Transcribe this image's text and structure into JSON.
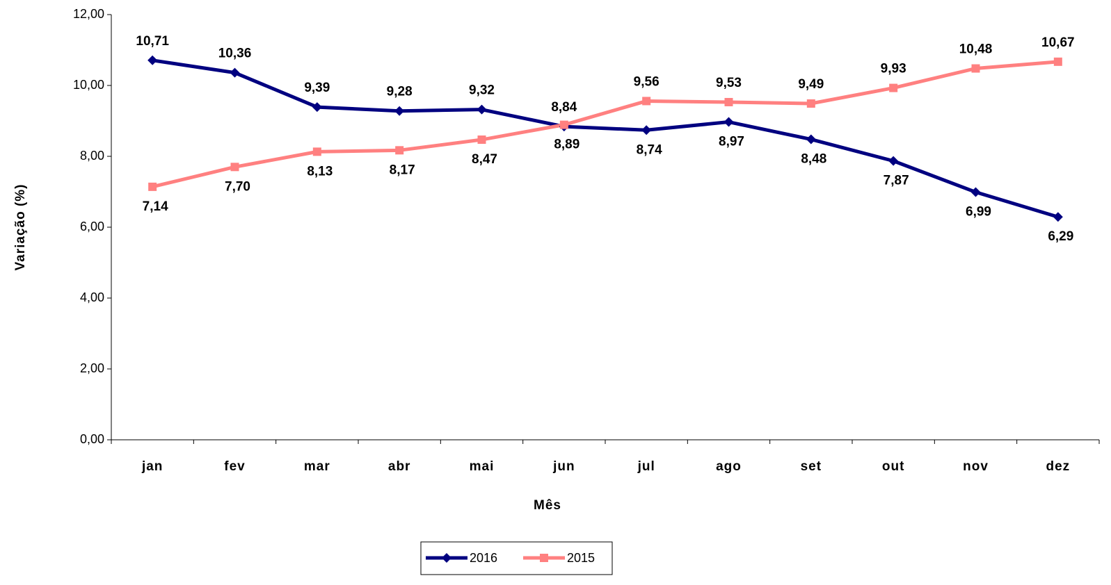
{
  "chart_data": {
    "type": "line",
    "x_label": "Mês",
    "y_label": "Variação (%)",
    "categories": [
      "jan",
      "fev",
      "mar",
      "abr",
      "mai",
      "jun",
      "jul",
      "ago",
      "set",
      "out",
      "nov",
      "dez"
    ],
    "series": [
      {
        "name": "2016",
        "color": "#000080",
        "marker": "diamond",
        "values": [
          10.71,
          10.36,
          9.39,
          9.28,
          9.32,
          8.84,
          8.74,
          8.97,
          8.48,
          7.87,
          6.99,
          6.29
        ],
        "value_labels": [
          "10,71",
          "10,36",
          "9,39",
          "9,28",
          "9,32",
          "8,84",
          "8,74",
          "8,97",
          "8,48",
          "7,87",
          "6,99",
          "6,29"
        ]
      },
      {
        "name": "2015",
        "color": "#ff8080",
        "marker": "square",
        "values": [
          7.14,
          7.7,
          8.13,
          8.17,
          8.47,
          8.89,
          9.56,
          9.53,
          9.49,
          9.93,
          10.48,
          10.67
        ],
        "value_labels": [
          "7,14",
          "7,70",
          "8,13",
          "8,17",
          "8,47",
          "8,89",
          "9,56",
          "9,53",
          "9,49",
          "9,93",
          "10,48",
          "10,67"
        ]
      }
    ],
    "ylim": [
      0,
      12
    ],
    "yticks": [
      {
        "value": 0,
        "label": "0,00"
      },
      {
        "value": 2,
        "label": "2,00"
      },
      {
        "value": 4,
        "label": "4,00"
      },
      {
        "value": 6,
        "label": "6,00"
      },
      {
        "value": 8,
        "label": "8,00"
      },
      {
        "value": 10,
        "label": "10,00"
      },
      {
        "value": 12,
        "label": "12,00"
      }
    ],
    "legend": "bottom"
  }
}
